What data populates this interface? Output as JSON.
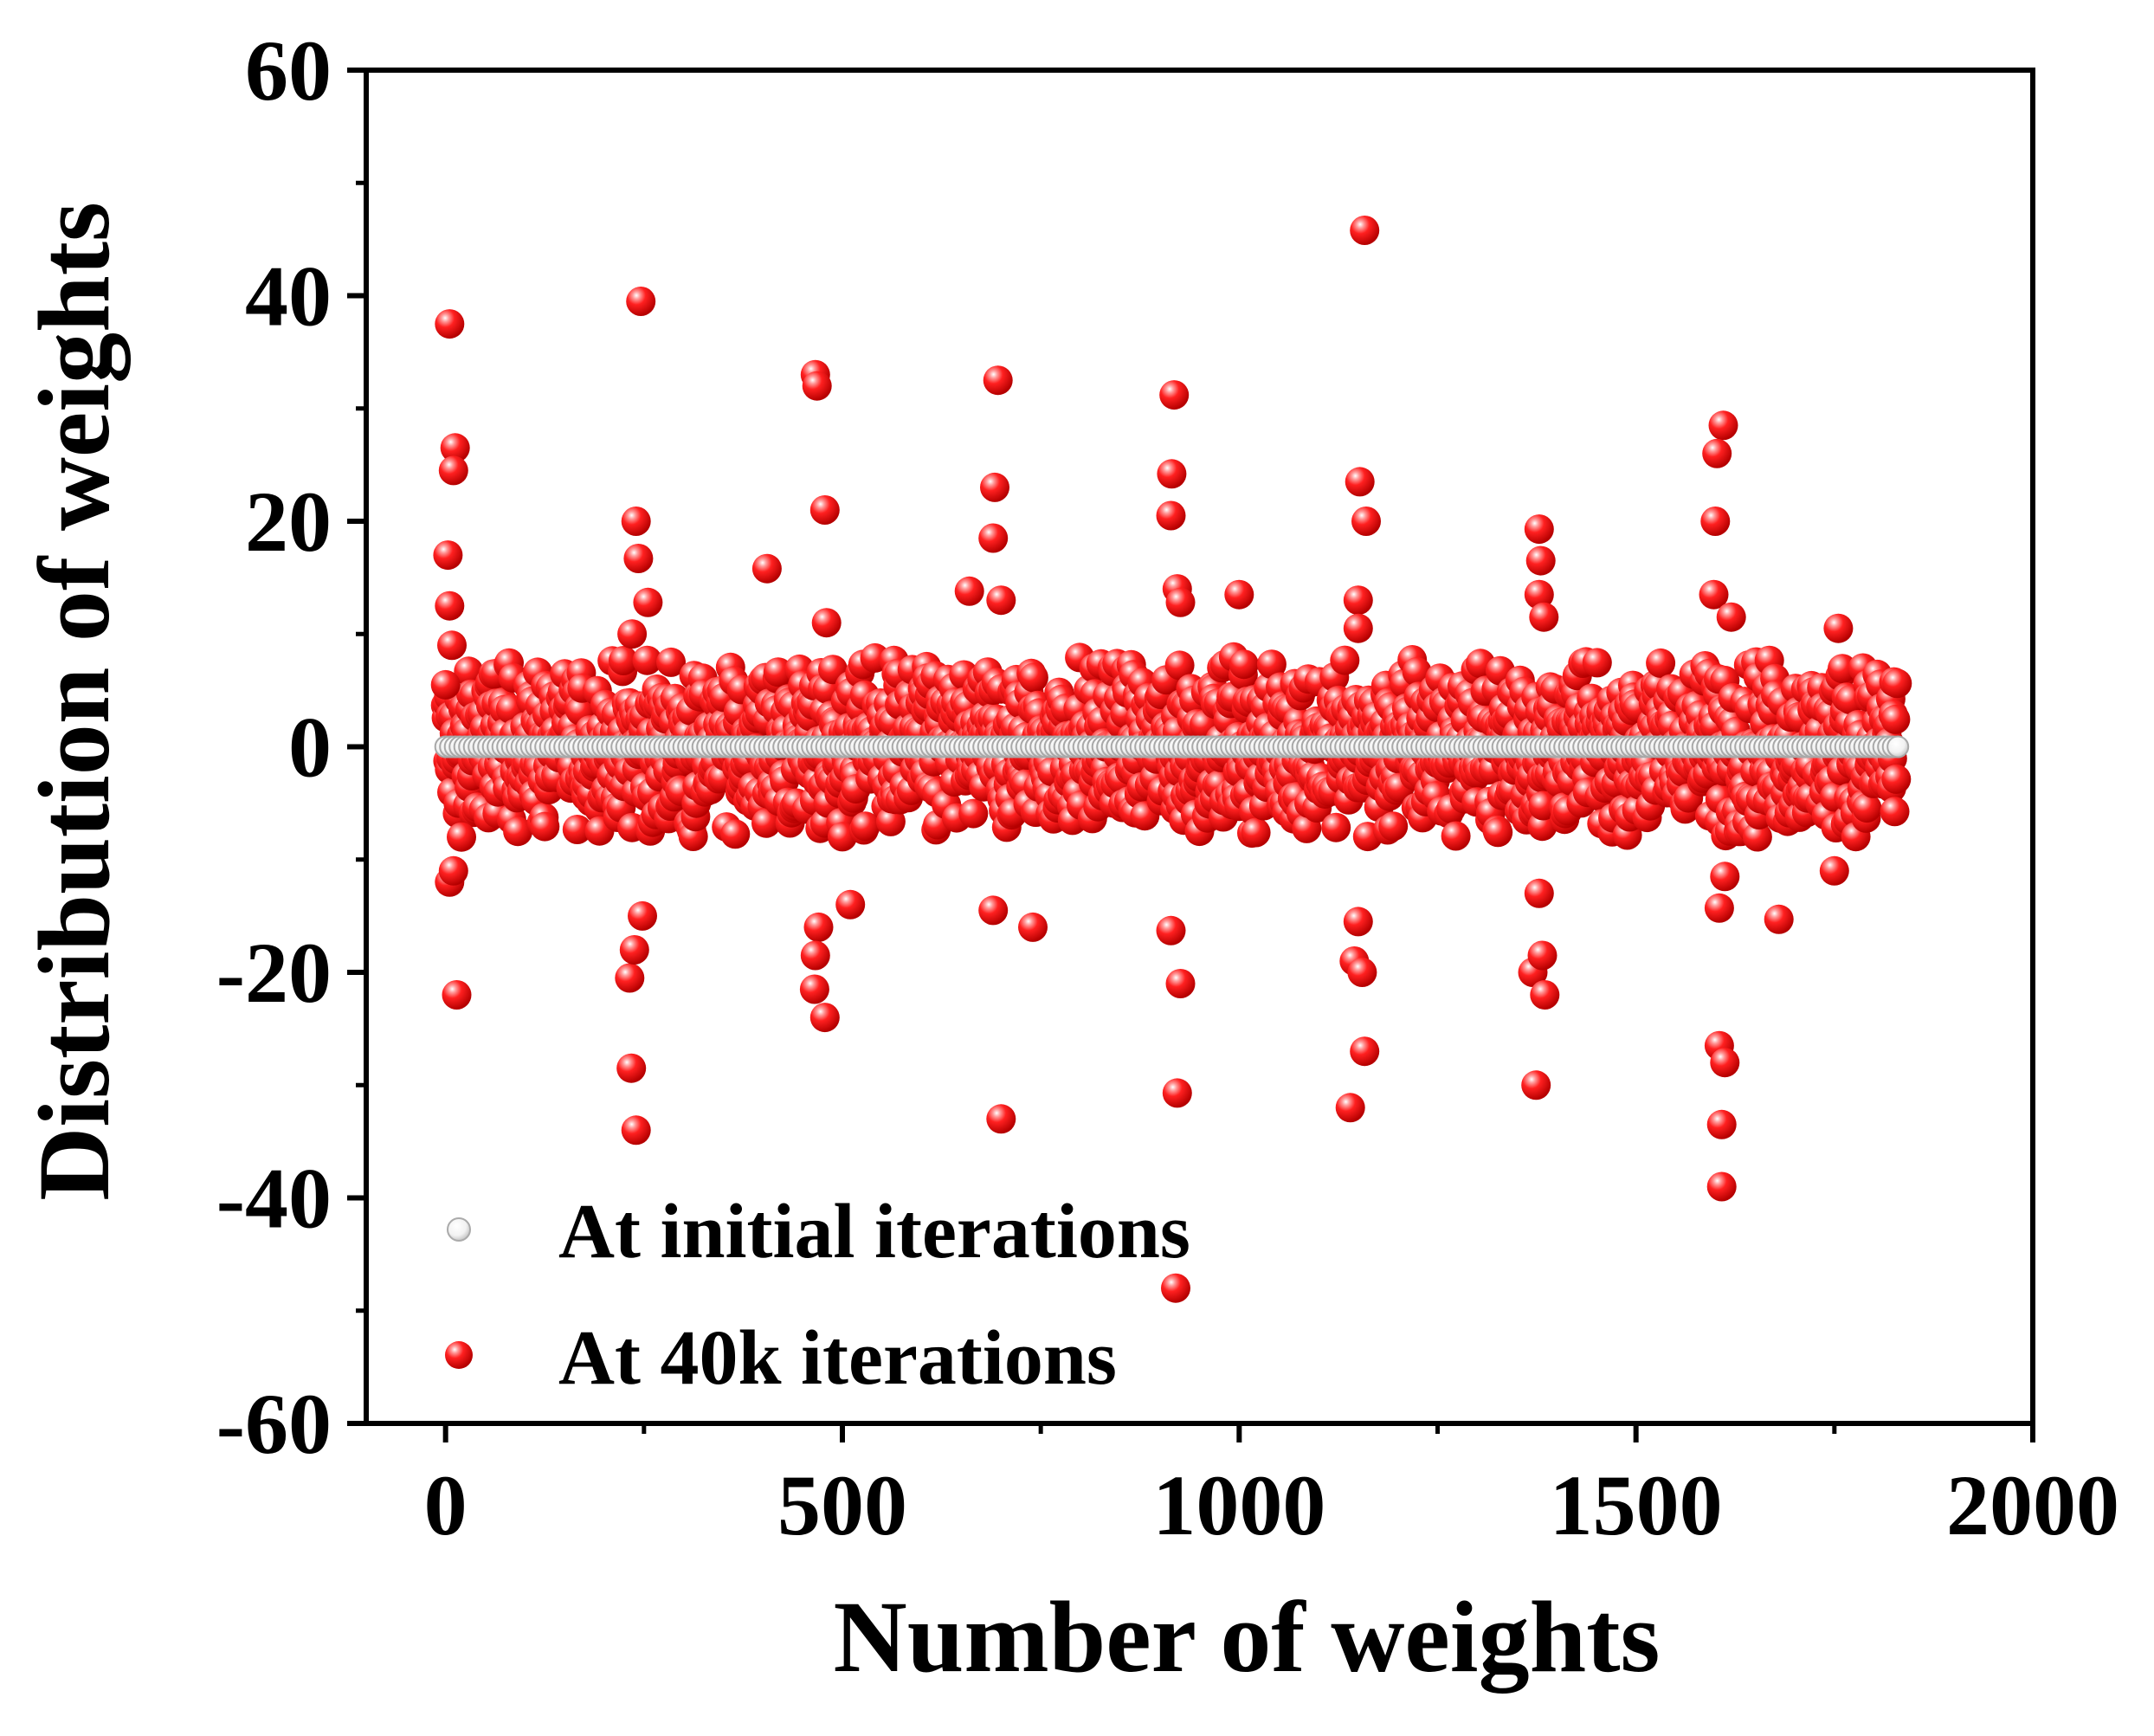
{
  "chart_data": {
    "type": "scatter",
    "title": "",
    "xlabel": "Number of weights",
    "ylabel": "Distribution of weights",
    "xlim": [
      -100,
      2000
    ],
    "ylim": [
      -60,
      60
    ],
    "xticks": [
      0,
      500,
      1000,
      1500,
      2000
    ],
    "yticks": [
      -60,
      -40,
      -20,
      0,
      20,
      40,
      60
    ],
    "grid": false,
    "legend_position": "bottom-left",
    "n_weights": 1830,
    "series": [
      {
        "name": "At initial iterations",
        "color": "#c8c8c8",
        "marker": "hollow-circle",
        "description_values": "all weights approximately 0 for indices 0 to 1830",
        "x_range": [
          0,
          1830
        ],
        "y_constant": 0
      },
      {
        "name": "At 40k iterations",
        "color": "#ff1a1a",
        "marker": "sphere",
        "bulk_spread": [
          -8,
          8
        ],
        "points": [
          [
            5,
            37.5
          ],
          [
            12,
            26.5
          ],
          [
            10,
            24.5
          ],
          [
            3,
            17
          ],
          [
            5,
            12.5
          ],
          [
            8,
            9
          ],
          [
            0,
            5.5
          ],
          [
            14,
            -22
          ],
          [
            5,
            -12
          ],
          [
            10,
            -11
          ],
          [
            20,
            -8
          ],
          [
            246,
            39.5
          ],
          [
            240,
            20
          ],
          [
            243,
            16.7
          ],
          [
            255,
            12.8
          ],
          [
            235,
            10
          ],
          [
            232,
            -20.5
          ],
          [
            238,
            -18
          ],
          [
            234,
            -28.5
          ],
          [
            240,
            -34
          ],
          [
            248,
            -15
          ],
          [
            466,
            33
          ],
          [
            468,
            32
          ],
          [
            478,
            21
          ],
          [
            480,
            11
          ],
          [
            470,
            -16
          ],
          [
            466,
            -18.5
          ],
          [
            465,
            -21.5
          ],
          [
            478,
            -24
          ],
          [
            510,
            -14
          ],
          [
            405,
            15.8
          ],
          [
            696,
            32.5
          ],
          [
            692,
            23
          ],
          [
            690,
            18.5
          ],
          [
            700,
            13
          ],
          [
            660,
            13.8
          ],
          [
            690,
            -14.5
          ],
          [
            700,
            -33
          ],
          [
            740,
            -16
          ],
          [
            918,
            31.2
          ],
          [
            915,
            24.2
          ],
          [
            914,
            20.5
          ],
          [
            922,
            14
          ],
          [
            926,
            12.8
          ],
          [
            914,
            -16.3
          ],
          [
            926,
            -21
          ],
          [
            922,
            -30.7
          ],
          [
            920,
            -48
          ],
          [
            1000,
            13.5
          ],
          [
            1158,
            45.8
          ],
          [
            1152,
            23.5
          ],
          [
            1160,
            20
          ],
          [
            1150,
            13
          ],
          [
            1150,
            10.5
          ],
          [
            1145,
            -19
          ],
          [
            1150,
            -15.5
          ],
          [
            1155,
            -20
          ],
          [
            1158,
            -27
          ],
          [
            1140,
            -32
          ],
          [
            1378,
            19.3
          ],
          [
            1380,
            16.5
          ],
          [
            1378,
            13.5
          ],
          [
            1384,
            11.5
          ],
          [
            1370,
            -20
          ],
          [
            1378,
            -13
          ],
          [
            1382,
            -18.5
          ],
          [
            1385,
            -22
          ],
          [
            1374,
            -30
          ],
          [
            1610,
            28.5
          ],
          [
            1602,
            26
          ],
          [
            1600,
            20
          ],
          [
            1598,
            13.5
          ],
          [
            1620,
            11.5
          ],
          [
            1612,
            -11.5
          ],
          [
            1605,
            -14.3
          ],
          [
            1605,
            -26.5
          ],
          [
            1612,
            -28
          ],
          [
            1608,
            -33.5
          ],
          [
            1608,
            -39
          ],
          [
            1680,
            -15.3
          ],
          [
            1755,
            10.5
          ],
          [
            1750,
            -11
          ]
        ]
      }
    ],
    "legend": [
      {
        "label": "At initial iterations",
        "marker": "hollow-circle"
      },
      {
        "label": "At 40k iterations",
        "marker": "sphere"
      }
    ]
  }
}
